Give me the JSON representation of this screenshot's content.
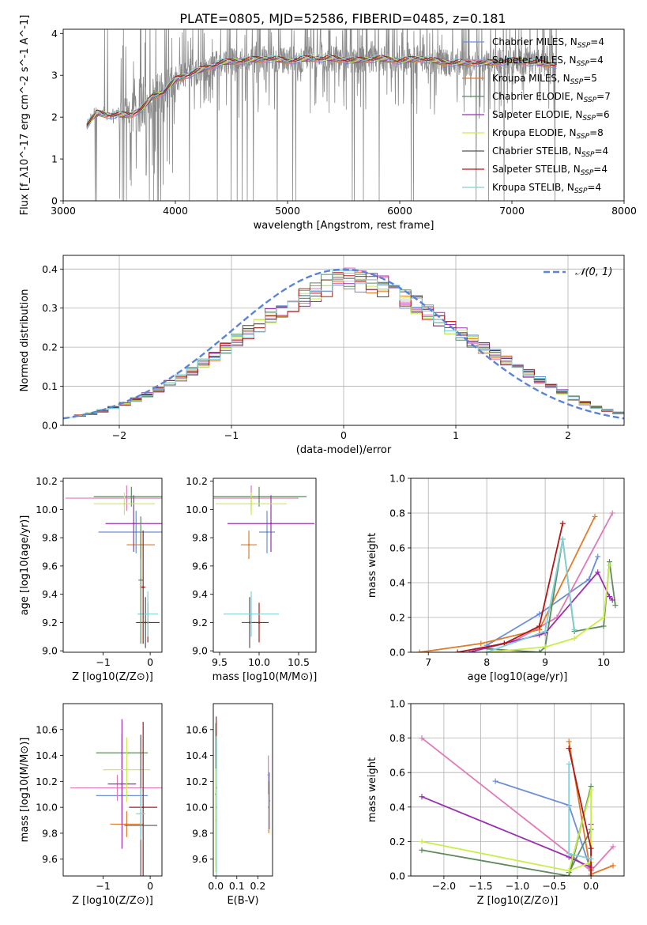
{
  "title": "PLATE=0805, MJD=52586, FIBERID=0485, z=0.181",
  "colors": [
    "#6a8fd6",
    "#e07ab8",
    "#e07b2a",
    "#5e8a5e",
    "#9a30b0",
    "#c9ee4a",
    "#555555",
    "#b01818",
    "#7fd3d8"
  ],
  "chart_data": [
    {
      "id": "spectrum",
      "type": "line",
      "xlabel": "wavelength [Angstrom, rest frame]",
      "ylabel": "Flux [f_λ10^-17 erg cm^-2 s^-1 A^-1]",
      "xlim": [
        3000,
        8000
      ],
      "ylim": [
        0,
        4.1
      ],
      "xticks": [
        3000,
        4000,
        5000,
        6000,
        7000,
        8000
      ],
      "yticks": [
        0,
        1,
        2,
        3,
        4
      ],
      "legend_position": "upper right",
      "series": [
        {
          "name": "Chabrier MILES, N_SSP=4",
          "color": "#6a8fd6"
        },
        {
          "name": "Salpeter MILES, N_SSP=4",
          "color": "#e07ab8"
        },
        {
          "name": "Kroupa MILES, N_SSP=5",
          "color": "#e07b2a"
        },
        {
          "name": "Chabrier ELODIE, N_SSP=7",
          "color": "#5e8a5e"
        },
        {
          "name": "Salpeter ELODIE, N_SSP=6",
          "color": "#9a30b0"
        },
        {
          "name": "Kroupa ELODIE, N_SSP=8",
          "color": "#c9ee4a"
        },
        {
          "name": "Chabrier STELIB, N_SSP=4",
          "color": "#555555"
        },
        {
          "name": "Salpeter STELIB, N_SSP=4",
          "color": "#b01818"
        },
        {
          "name": "Kroupa STELIB, N_SSP=4",
          "color": "#7fd3d8"
        }
      ],
      "model_envelope": {
        "x": [
          3210,
          3300,
          3400,
          3500,
          3600,
          3700,
          3800,
          3900,
          4000,
          4200,
          4400,
          4600,
          4800,
          5000,
          5200,
          5400,
          5600,
          5800,
          6000,
          6200,
          6400,
          6600,
          6800,
          7000,
          7200,
          7400
        ],
        "y": [
          1.8,
          2.1,
          2.05,
          2.05,
          2.05,
          2.2,
          2.5,
          2.6,
          2.9,
          3.1,
          3.3,
          3.35,
          3.4,
          3.35,
          3.4,
          3.4,
          3.35,
          3.4,
          3.35,
          3.4,
          3.3,
          3.3,
          3.3,
          3.35,
          3.3,
          3.25
        ]
      }
    },
    {
      "id": "residual-histogram",
      "type": "line",
      "xlabel": "(data-model)/error",
      "ylabel": "Normed distribution",
      "xlim": [
        -2.5,
        2.5
      ],
      "ylim": [
        0,
        0.435
      ],
      "xticks": [
        -2,
        -1,
        0,
        1,
        2
      ],
      "yticks": [
        0.0,
        0.1,
        0.2,
        0.3,
        0.4
      ],
      "legend": "N(0,1)",
      "legend_position": "upper right",
      "grid": true,
      "bin_edges_from": -2.5,
      "bin_width": 0.1,
      "histogram": [
        0.022,
        0.025,
        0.03,
        0.037,
        0.045,
        0.055,
        0.066,
        0.079,
        0.092,
        0.107,
        0.123,
        0.14,
        0.158,
        0.177,
        0.197,
        0.217,
        0.237,
        0.257,
        0.277,
        0.295,
        0.313,
        0.33,
        0.344,
        0.358,
        0.37,
        0.378,
        0.37,
        0.365,
        0.355,
        0.34,
        0.325,
        0.308,
        0.29,
        0.27,
        0.25,
        0.232,
        0.215,
        0.198,
        0.182,
        0.167,
        0.15,
        0.133,
        0.116,
        0.1,
        0.085,
        0.07,
        0.057,
        0.046,
        0.038,
        0.032
      ],
      "gaussian": {
        "mean": 0,
        "sigma": 1,
        "color": "#5b84d6"
      }
    },
    {
      "id": "age-vs-metallicity",
      "type": "scatter",
      "xlabel": "Z [log10(Z/Z⊙)]",
      "ylabel": "age [log10(age/yr)]",
      "xlim": [
        -1.85,
        0.25
      ],
      "ylim": [
        8.99,
        10.22
      ],
      "xticks": [
        -1,
        0
      ],
      "yticks": [
        9.0,
        9.2,
        9.4,
        9.6,
        9.8,
        10.0,
        10.2
      ],
      "points": [
        {
          "x": -0.3,
          "y": 9.84,
          "xerr": 0.8,
          "yerr": 0.15,
          "series": 0
        },
        {
          "x": -0.5,
          "y": 10.08,
          "xerr": 1.3,
          "yerr": 0.09,
          "series": 1
        },
        {
          "x": -0.2,
          "y": 9.75,
          "xerr": 0.3,
          "yerr": 0.1,
          "series": 2
        },
        {
          "x": -0.4,
          "y": 10.09,
          "xerr": 0.8,
          "yerr": 0.07,
          "series": 3
        },
        {
          "x": -0.35,
          "y": 9.9,
          "xerr": 0.6,
          "yerr": 0.2,
          "series": 4
        },
        {
          "x": -0.55,
          "y": 10.04,
          "xerr": 0.65,
          "yerr": 0.08,
          "series": 5
        },
        {
          "x": -0.1,
          "y": 9.2,
          "xerr": 0.1,
          "yerr": 0.18,
          "series": 6
        },
        {
          "x": -0.05,
          "y": 9.2,
          "xerr": 0.25,
          "yerr": 0.14,
          "series": 7
        },
        {
          "x": -0.05,
          "y": 9.26,
          "xerr": 0.22,
          "yerr": 0.16,
          "series": 8
        },
        {
          "x": -0.2,
          "y": 9.5,
          "xerr": 0.05,
          "yerr": 0.45,
          "series": 3
        },
        {
          "x": -0.15,
          "y": 9.45,
          "xerr": 0.05,
          "yerr": 0.4,
          "series": 7
        }
      ]
    },
    {
      "id": "age-vs-mass",
      "type": "scatter",
      "xlabel": "mass [log10(M/M⊙)]",
      "ylabel": "",
      "xlim": [
        9.42,
        10.72
      ],
      "ylim": [
        8.99,
        10.22
      ],
      "xticks": [
        9.5,
        10.0,
        10.5
      ],
      "yticks": [
        9.0,
        9.2,
        9.4,
        9.6,
        9.8,
        10.0,
        10.2
      ],
      "points": [
        {
          "x": 10.1,
          "y": 9.84,
          "xerr": 0.1,
          "yerr": 0.15,
          "series": 0
        },
        {
          "x": 9.9,
          "y": 10.08,
          "xerr": 0.6,
          "yerr": 0.09,
          "series": 1
        },
        {
          "x": 9.87,
          "y": 9.75,
          "xerr": 0.1,
          "yerr": 0.1,
          "series": 2
        },
        {
          "x": 10.0,
          "y": 10.09,
          "xerr": 0.6,
          "yerr": 0.07,
          "series": 3
        },
        {
          "x": 10.15,
          "y": 9.9,
          "xerr": 0.55,
          "yerr": 0.2,
          "series": 4
        },
        {
          "x": 9.9,
          "y": 10.04,
          "xerr": 0.45,
          "yerr": 0.08,
          "series": 5
        },
        {
          "x": 9.88,
          "y": 9.2,
          "xerr": 0.1,
          "yerr": 0.18,
          "series": 6
        },
        {
          "x": 10.0,
          "y": 9.2,
          "xerr": 0.12,
          "yerr": 0.14,
          "series": 7
        },
        {
          "x": 9.9,
          "y": 9.26,
          "xerr": 0.35,
          "yerr": 0.16,
          "series": 8
        }
      ]
    },
    {
      "id": "weight-vs-age",
      "type": "line",
      "xlabel": "age [log10(age/yr)]",
      "ylabel": "mass weight",
      "xlim": [
        6.7,
        10.35
      ],
      "ylim": [
        0,
        1.0
      ],
      "xticks": [
        7,
        8,
        9,
        10
      ],
      "yticks": [
        0.0,
        0.2,
        0.4,
        0.6,
        0.8,
        1.0
      ],
      "grid": true,
      "series": [
        {
          "name": "Chabrier MILES",
          "x": [
            8.0,
            8.9,
            9.75,
            9.9
          ],
          "y": [
            0.04,
            0.22,
            0.42,
            0.55
          ],
          "color": "#6a8fd6"
        },
        {
          "name": "Salpeter MILES",
          "x": [
            7.8,
            8.5,
            9.2,
            10.15
          ],
          "y": [
            0.01,
            0.07,
            0.2,
            0.8
          ],
          "color": "#e07ab8"
        },
        {
          "name": "Kroupa MILES",
          "x": [
            6.85,
            7.9,
            8.9,
            9.85
          ],
          "y": [
            0.0,
            0.05,
            0.13,
            0.78
          ],
          "color": "#e07b2a"
        },
        {
          "name": "Chabrier ELODIE",
          "x": [
            8.0,
            8.9,
            9.0,
            9.3,
            9.5,
            10.0,
            10.1,
            10.2
          ],
          "y": [
            0.02,
            0.0,
            0.03,
            0.65,
            0.12,
            0.15,
            0.52,
            0.27
          ],
          "color": "#5e8a5e"
        },
        {
          "name": "Salpeter ELODIE",
          "x": [
            7.7,
            8.3,
            8.9,
            9.0,
            9.9,
            10.1,
            10.15
          ],
          "y": [
            0.0,
            0.05,
            0.1,
            0.11,
            0.46,
            0.32,
            0.3
          ],
          "color": "#9a30b0"
        },
        {
          "name": "Kroupa ELODIE",
          "x": [
            8.0,
            9.0,
            9.5,
            10.0,
            10.1
          ],
          "y": [
            0.0,
            0.03,
            0.08,
            0.2,
            0.5
          ],
          "color": "#c9ee4a"
        },
        {
          "name": "Salpeter STELIB",
          "x": [
            7.5,
            8.3,
            8.9,
            9.3
          ],
          "y": [
            0.0,
            0.05,
            0.15,
            0.74
          ],
          "color": "#b01818"
        },
        {
          "name": "Kroupa STELIB",
          "x": [
            8.0,
            9.0,
            9.3,
            9.5
          ],
          "y": [
            0.0,
            0.12,
            0.65,
            0.13
          ],
          "color": "#7fd3d8"
        }
      ]
    },
    {
      "id": "mass-vs-metallicity",
      "type": "scatter",
      "xlabel": "Z [log10(Z/Z⊙)]",
      "ylabel": "mass [log10(M/M⊙)]",
      "xlim": [
        -1.85,
        0.25
      ],
      "ylim": [
        9.47,
        10.8
      ],
      "xticks": [
        -1,
        0
      ],
      "yticks": [
        9.6,
        9.8,
        10.0,
        10.2,
        10.4,
        10.6
      ],
      "points": [
        {
          "x": -0.6,
          "y": 10.09,
          "xerr": 0.55,
          "yerr": 0.2,
          "series": 0
        },
        {
          "x": -0.7,
          "y": 10.15,
          "xerr": 1.0,
          "yerr": 0.1,
          "series": 1
        },
        {
          "x": -0.5,
          "y": 9.87,
          "xerr": 0.35,
          "yerr": 0.1,
          "series": 2
        },
        {
          "x": -0.6,
          "y": 10.42,
          "xerr": 0.55,
          "yerr": 0.15,
          "series": 3
        },
        {
          "x": -0.6,
          "y": 10.18,
          "xerr": 0.3,
          "yerr": 0.5,
          "series": 4
        },
        {
          "x": -0.5,
          "y": 10.29,
          "xerr": 0.5,
          "yerr": 0.25,
          "series": 5
        },
        {
          "x": -0.2,
          "y": 9.86,
          "xerr": 0.35,
          "yerr": 0.7,
          "series": 6
        },
        {
          "x": -0.15,
          "y": 10.0,
          "xerr": 0.3,
          "yerr": 0.66,
          "series": 7
        },
        {
          "x": -0.2,
          "y": 9.95,
          "xerr": 0.1,
          "yerr": 0.2,
          "series": 8
        }
      ]
    },
    {
      "id": "mass-vs-ebv",
      "type": "scatter",
      "xlabel": "E(B-V)",
      "ylabel": "",
      "xlim": [
        -0.012,
        0.27
      ],
      "ylim": [
        9.47,
        10.8
      ],
      "xticks": [
        0.0,
        0.1,
        0.2
      ],
      "yticks": [
        9.6,
        9.8,
        10.0,
        10.2,
        10.4,
        10.6
      ],
      "points": [
        {
          "x": 0.0,
          "y": 10.1,
          "xerr": 0.0,
          "yerr": 0.55,
          "series": 3
        },
        {
          "x": 0.002,
          "y": 10.15,
          "xerr": 0.0,
          "yerr": 0.55,
          "series": 7
        },
        {
          "x": 0.0,
          "y": 9.9,
          "xerr": 0.0,
          "yerr": 0.4,
          "series": 5
        },
        {
          "x": 0.003,
          "y": 10.0,
          "xerr": 0.0,
          "yerr": 0.55,
          "series": 8
        },
        {
          "x": 0.25,
          "y": 10.25,
          "xerr": 0.0,
          "yerr": 0.15,
          "series": 1
        },
        {
          "x": 0.252,
          "y": 10.0,
          "xerr": 0.0,
          "yerr": 0.2,
          "series": 2
        },
        {
          "x": 0.255,
          "y": 10.05,
          "xerr": 0.0,
          "yerr": 0.22,
          "series": 0
        }
      ]
    },
    {
      "id": "weight-vs-metallicity",
      "type": "line",
      "xlabel": "Z [log10(Z/Z⊙)]",
      "ylabel": "mass weight",
      "xlim": [
        -2.45,
        0.45
      ],
      "ylim": [
        0,
        1.0
      ],
      "xticks": [
        -2.0,
        -1.5,
        -1.0,
        -0.5,
        0.0
      ],
      "yticks": [
        0.0,
        0.2,
        0.4,
        0.6,
        0.8,
        1.0
      ],
      "grid": true,
      "series": [
        {
          "name": "Chabrier MILES",
          "x": [
            -1.3,
            -0.3,
            0.0,
            0.0
          ],
          "y": [
            0.55,
            0.41,
            0.03,
            0.04
          ],
          "color": "#6a8fd6"
        },
        {
          "name": "Salpeter MILES",
          "x": [
            -2.3,
            0.0,
            0.3
          ],
          "y": [
            0.8,
            0.03,
            0.17
          ],
          "color": "#e07ab8"
        },
        {
          "name": "Kroupa MILES",
          "x": [
            -0.3,
            0.0,
            0.3
          ],
          "y": [
            0.78,
            0.01,
            0.06
          ],
          "color": "#e07b2a"
        },
        {
          "name": "Chabrier ELODIE",
          "x": [
            -2.3,
            -0.3,
            0.0,
            -0.3,
            0.0
          ],
          "y": [
            0.15,
            0.0,
            0.52,
            0.02,
            0.27
          ],
          "color": "#5e8a5e"
        },
        {
          "name": "Salpeter ELODIE",
          "x": [
            -2.3,
            -0.3,
            0.0,
            0.0
          ],
          "y": [
            0.46,
            0.11,
            0.05,
            0.3
          ],
          "color": "#9a30b0"
        },
        {
          "name": "Kroupa ELODIE",
          "x": [
            -2.3,
            -0.3,
            0.0,
            0.0,
            -0.3
          ],
          "y": [
            0.2,
            0.03,
            0.08,
            0.5,
            0.03
          ],
          "color": "#c9ee4a"
        },
        {
          "name": "Salpeter STELIB",
          "x": [
            -0.3,
            0.0,
            0.0
          ],
          "y": [
            0.74,
            0.16,
            0.0
          ],
          "color": "#b01818"
        },
        {
          "name": "Kroupa STELIB",
          "x": [
            -0.3,
            -0.3,
            0.0
          ],
          "y": [
            0.65,
            0.13,
            0.1
          ],
          "color": "#7fd3d8"
        }
      ]
    }
  ]
}
